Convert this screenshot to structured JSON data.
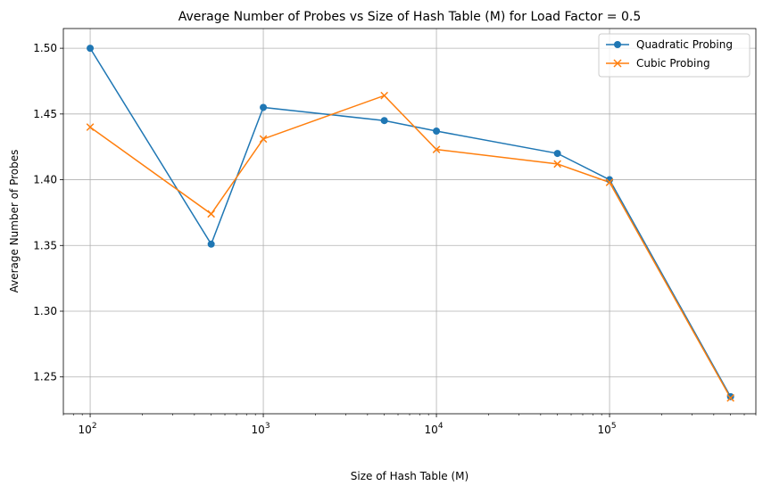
{
  "chart_data": {
    "type": "line",
    "title": "Average Number of Probes vs Size of Hash Table (M) for Load Factor = 0.5",
    "xlabel": "Size of Hash Table (M)",
    "ylabel": "Average Number of Probes",
    "xscale": "log",
    "x": [
      100,
      500,
      1000,
      5000,
      10000,
      50000,
      100000,
      500000
    ],
    "xlim": [
      70,
      700000
    ],
    "ylim": [
      1.222,
      1.515
    ],
    "xticks": [
      {
        "value": 100,
        "base": "10",
        "exp": "2"
      },
      {
        "value": 1000,
        "base": "10",
        "exp": "3"
      },
      {
        "value": 10000,
        "base": "10",
        "exp": "4"
      },
      {
        "value": 100000,
        "base": "10",
        "exp": "5"
      }
    ],
    "yticks": [
      {
        "value": 1.25,
        "label": "1.25"
      },
      {
        "value": 1.3,
        "label": "1.30"
      },
      {
        "value": 1.35,
        "label": "1.35"
      },
      {
        "value": 1.4,
        "label": "1.40"
      },
      {
        "value": 1.45,
        "label": "1.45"
      },
      {
        "value": 1.5,
        "label": "1.50"
      }
    ],
    "grid": true,
    "legend_position": "top-right",
    "series": [
      {
        "name": "Quadratic Probing",
        "marker": "circle",
        "color": "#1f77b4",
        "values": [
          1.5,
          1.351,
          1.455,
          1.445,
          1.437,
          1.42,
          1.4,
          1.235
        ]
      },
      {
        "name": "Cubic Probing",
        "marker": "x",
        "color": "#ff7f0e",
        "values": [
          1.44,
          1.374,
          1.431,
          1.464,
          1.423,
          1.412,
          1.398,
          1.234
        ]
      }
    ]
  }
}
